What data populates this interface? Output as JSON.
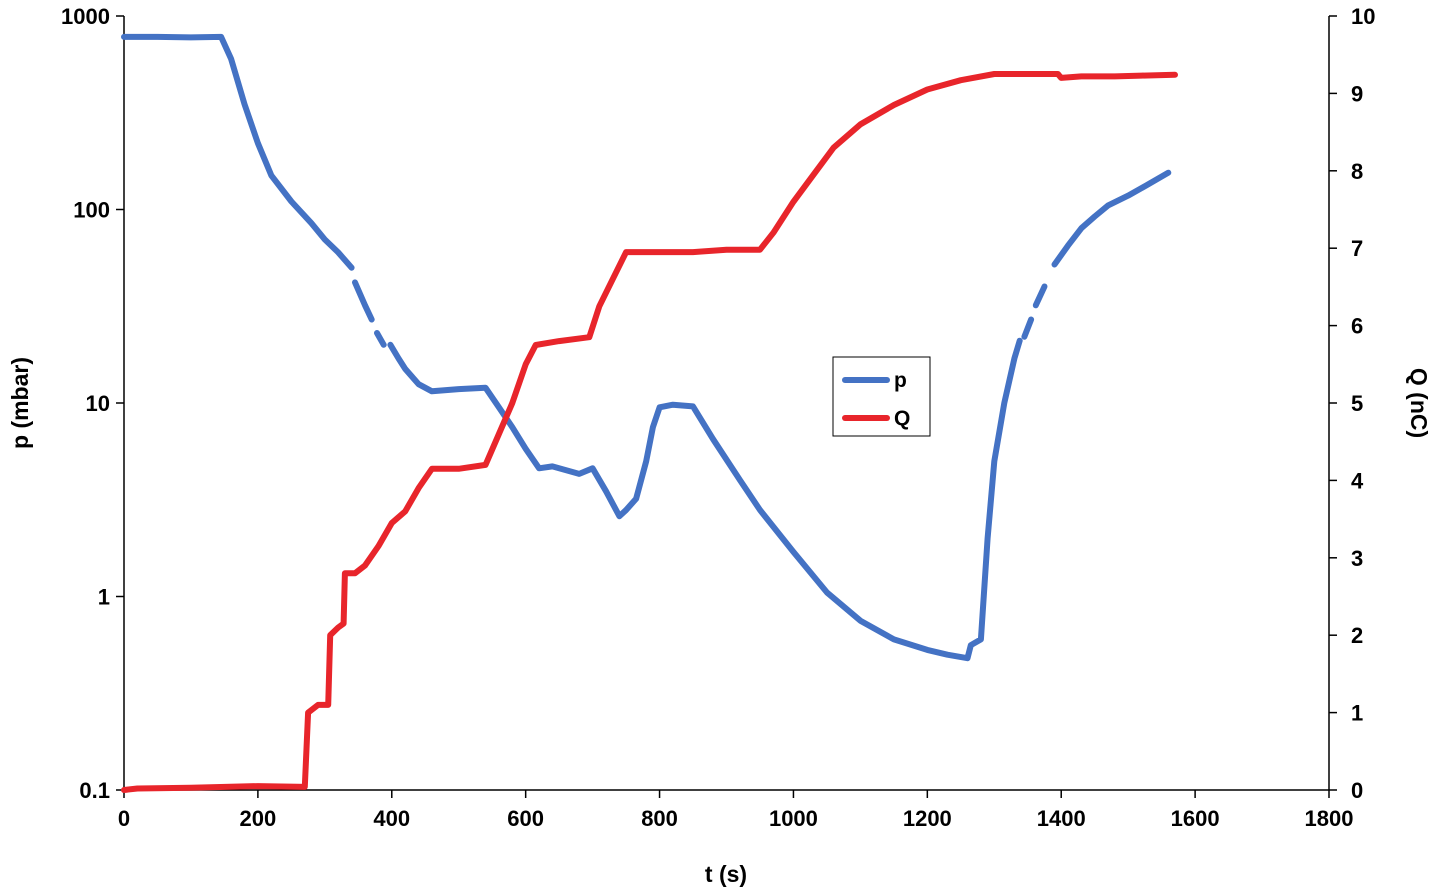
{
  "chart_data": {
    "type": "line",
    "xlabel": "t (s)",
    "ylabel": "p (mbar)",
    "y2label": "Q (nC)",
    "xlim": [
      0,
      1800
    ],
    "ylim": [
      0.1,
      1000
    ],
    "yscale": "log",
    "y2lim": [
      0,
      10
    ],
    "x_ticks": [
      "0",
      "200",
      "400",
      "600",
      "800",
      "1000",
      "1200",
      "1400",
      "1600",
      "1800"
    ],
    "y_ticks": [
      "0.1",
      "1",
      "10",
      "100",
      "1000"
    ],
    "y2_ticks": [
      "0",
      "1",
      "2",
      "3",
      "4",
      "5",
      "6",
      "7",
      "8",
      "9",
      "10"
    ],
    "grid": false,
    "legend_position": "center-right",
    "series": [
      {
        "name": "p",
        "axis": "left",
        "color": "#4472C4",
        "segments": [
          [
            [
              0,
              780
            ],
            [
              50,
              780
            ],
            [
              100,
              775
            ],
            [
              145,
              780
            ],
            [
              160,
              600
            ],
            [
              180,
              350
            ],
            [
              200,
              220
            ],
            [
              220,
              150
            ],
            [
              250,
              110
            ],
            [
              280,
              85
            ],
            [
              300,
              70
            ],
            [
              320,
              60
            ],
            [
              340,
              50
            ]
          ],
          [
            [
              345,
              42
            ],
            [
              360,
              32
            ],
            [
              370,
              27
            ]
          ],
          [
            [
              378,
              23
            ],
            [
              388,
              20
            ]
          ],
          [
            [
              398,
              20
            ],
            [
              410,
              17
            ],
            [
              420,
              15
            ],
            [
              440,
              12.5
            ],
            [
              460,
              11.5
            ],
            [
              500,
              11.8
            ],
            [
              540,
              12
            ],
            [
              560,
              9.5
            ],
            [
              580,
              7.5
            ],
            [
              600,
              5.8
            ],
            [
              620,
              4.6
            ],
            [
              640,
              4.7
            ],
            [
              660,
              4.5
            ],
            [
              680,
              4.3
            ],
            [
              700,
              4.6
            ],
            [
              720,
              3.5
            ],
            [
              740,
              2.6
            ],
            [
              750,
              2.8
            ],
            [
              765,
              3.2
            ],
            [
              780,
              5
            ],
            [
              790,
              7.5
            ],
            [
              800,
              9.5
            ],
            [
              820,
              9.8
            ],
            [
              850,
              9.6
            ],
            [
              880,
              6.5
            ],
            [
              920,
              4
            ],
            [
              950,
              2.8
            ],
            [
              1000,
              1.7
            ],
            [
              1050,
              1.05
            ],
            [
              1100,
              0.75
            ],
            [
              1150,
              0.6
            ],
            [
              1200,
              0.53
            ],
            [
              1230,
              0.5
            ],
            [
              1260,
              0.48
            ],
            [
              1265,
              0.56
            ],
            [
              1280,
              0.6
            ],
            [
              1290,
              2
            ],
            [
              1300,
              5
            ],
            [
              1315,
              10
            ],
            [
              1330,
              17
            ],
            [
              1338,
              21
            ]
          ],
          [
            [
              1345,
              22
            ],
            [
              1355,
              27
            ]
          ],
          [
            [
              1362,
              32
            ],
            [
              1375,
              40
            ]
          ],
          [
            [
              1390,
              52
            ],
            [
              1410,
              65
            ],
            [
              1430,
              80
            ],
            [
              1450,
              92
            ],
            [
              1470,
              105
            ],
            [
              1500,
              118
            ],
            [
              1530,
              135
            ],
            [
              1560,
              155
            ]
          ]
        ]
      },
      {
        "name": "Q",
        "axis": "right",
        "color": "#E8252B",
        "segments": [
          [
            [
              0,
              0
            ],
            [
              20,
              0.02
            ],
            [
              100,
              0.03
            ],
            [
              200,
              0.05
            ],
            [
              270,
              0.04
            ],
            [
              275,
              1
            ],
            [
              290,
              1.1
            ],
            [
              305,
              1.1
            ],
            [
              308,
              2
            ],
            [
              320,
              2.1
            ],
            [
              328,
              2.15
            ],
            [
              330,
              2.8
            ],
            [
              345,
              2.8
            ],
            [
              360,
              2.9
            ],
            [
              380,
              3.15
            ],
            [
              400,
              3.45
            ],
            [
              420,
              3.6
            ],
            [
              440,
              3.9
            ],
            [
              460,
              4.15
            ],
            [
              500,
              4.15
            ],
            [
              540,
              4.2
            ],
            [
              560,
              4.6
            ],
            [
              580,
              5
            ],
            [
              600,
              5.5
            ],
            [
              615,
              5.75
            ],
            [
              650,
              5.8
            ],
            [
              695,
              5.85
            ],
            [
              710,
              6.25
            ],
            [
              730,
              6.6
            ],
            [
              750,
              6.95
            ],
            [
              800,
              6.95
            ],
            [
              850,
              6.95
            ],
            [
              900,
              6.98
            ],
            [
              950,
              6.98
            ],
            [
              970,
              7.2
            ],
            [
              1000,
              7.6
            ],
            [
              1030,
              7.95
            ],
            [
              1060,
              8.3
            ],
            [
              1100,
              8.6
            ],
            [
              1150,
              8.85
            ],
            [
              1200,
              9.05
            ],
            [
              1250,
              9.17
            ],
            [
              1300,
              9.25
            ],
            [
              1350,
              9.25
            ],
            [
              1395,
              9.25
            ],
            [
              1400,
              9.2
            ],
            [
              1430,
              9.22
            ],
            [
              1480,
              9.22
            ],
            [
              1520,
              9.23
            ],
            [
              1570,
              9.24
            ]
          ]
        ]
      }
    ]
  }
}
